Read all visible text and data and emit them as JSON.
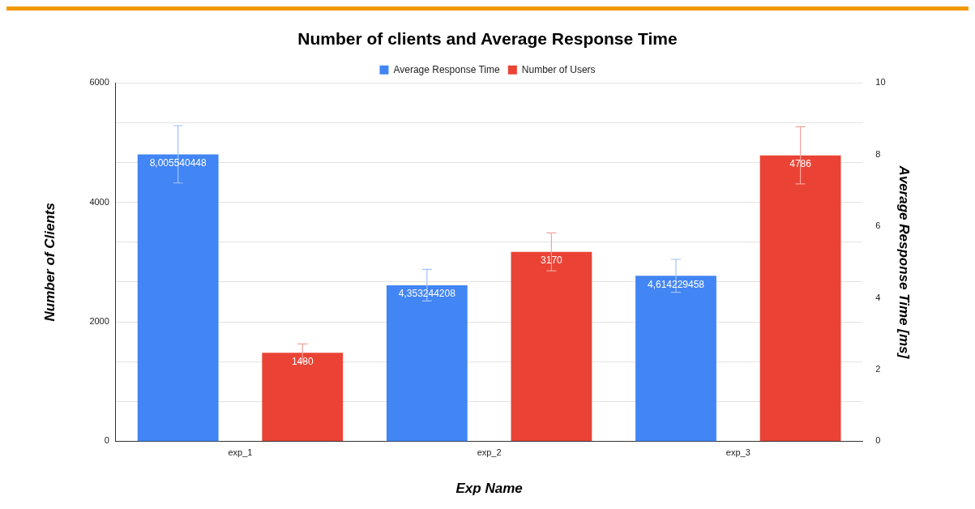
{
  "chart_data": {
    "type": "bar",
    "title": "Number of clients and Average Response Time",
    "xlabel": "Exp Name",
    "ylabel": "Number of Clients",
    "y2label": "Average Response Time [ms]",
    "categories": [
      "exp_1",
      "exp_2",
      "exp_3"
    ],
    "series": [
      {
        "name": "Average Response Time",
        "color": "#4285f4",
        "axis": "y2",
        "values": [
          8.005540448,
          4.353244208,
          4.614229458
        ],
        "value_labels": [
          "8,005540448",
          "4,353244208",
          "4,614229458"
        ],
        "errors": [
          0.8,
          0.44,
          0.46
        ]
      },
      {
        "name": "Number of Users",
        "color": "#ea4335",
        "values": [
          1480,
          3170,
          4786
        ],
        "value_labels": [
          "1480",
          "3170",
          "4786"
        ],
        "errors": [
          148,
          317,
          479
        ]
      }
    ],
    "ylim": [
      0,
      6000
    ],
    "yticks": [
      0,
      {
        "value": 666.67,
        "label": null
      },
      {
        "value": 1333.33,
        "label": null
      },
      2000,
      {
        "value": 2666.67,
        "label": null
      },
      {
        "value": 3333.33,
        "label": null
      },
      4000,
      {
        "value": 4666.67,
        "label": null
      },
      {
        "value": 5333.33,
        "label": null
      },
      6000
    ],
    "y2lim": [
      0,
      10
    ],
    "y2ticks": [
      0,
      2,
      4,
      6,
      8,
      10
    ],
    "grid": "y",
    "legend": "top"
  }
}
